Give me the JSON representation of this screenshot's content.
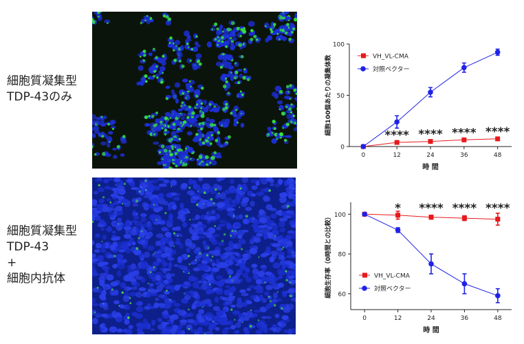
{
  "labels": {
    "top": [
      "細胞質凝集型",
      "TDP-43のみ"
    ],
    "bottom": [
      "細胞質凝集型",
      "TDP-43",
      "+",
      "細胞内抗体"
    ]
  },
  "micrographs": {
    "top": {
      "background": "#0b140a",
      "nuclei_color": "#1c2fd6",
      "aggregate_color": "#35e23a"
    },
    "bottom": {
      "background": "#050d30",
      "nuclei_color": "#1b2fd0",
      "aggregate_color": "#3fd84a"
    }
  },
  "colors": {
    "vh_vl_cma": "#e8191c",
    "control_vector": "#1f22e6"
  },
  "chart_data": [
    {
      "type": "line",
      "xlabel": "時 間",
      "ylabel": "細胞100個あたりの凝集体数",
      "x": [
        0,
        12,
        24,
        36,
        48
      ],
      "xlim": [
        -5,
        53
      ],
      "ylim": [
        0,
        100
      ],
      "yticks": [
        0,
        50,
        100
      ],
      "legend_position": "top-left",
      "series": [
        {
          "name": "VH_VL-CMA",
          "color": "#e8191c",
          "marker": "square",
          "values": [
            0,
            4,
            5,
            6.5,
            7.5
          ],
          "errors": [
            0,
            1.5,
            1,
            1,
            1.5
          ]
        },
        {
          "name": "対照ベクター",
          "color": "#1f22e6",
          "marker": "circle",
          "values": [
            0,
            24,
            53,
            77,
            92
          ],
          "errors": [
            0,
            6,
            4.5,
            4.5,
            3
          ]
        }
      ],
      "annotations": [
        {
          "x": 12,
          "y": 4,
          "text": "****"
        },
        {
          "x": 24,
          "y": 5,
          "text": "****"
        },
        {
          "x": 36,
          "y": 6.5,
          "text": "****"
        },
        {
          "x": 48,
          "y": 7.5,
          "text": "****"
        }
      ]
    },
    {
      "type": "line",
      "xlabel": "時 間",
      "ylabel": "細胞生存率（0時間との比較）",
      "x": [
        0,
        12,
        24,
        36,
        48
      ],
      "xlim": [
        -5,
        53
      ],
      "ylim": [
        52,
        106
      ],
      "yticks": [
        60,
        80,
        100
      ],
      "legend_position": "bottom-left",
      "series": [
        {
          "name": "VH_VL-CMA",
          "color": "#e8191c",
          "marker": "square",
          "values": [
            100,
            99.5,
            98.5,
            98,
            97.5
          ],
          "errors": [
            0,
            2,
            1,
            1.2,
            3
          ]
        },
        {
          "name": "対照ベクター",
          "color": "#1f22e6",
          "marker": "circle",
          "values": [
            100,
            92,
            75,
            65,
            59
          ],
          "errors": [
            0,
            1.2,
            5,
            5,
            3.5
          ]
        }
      ],
      "annotations": [
        {
          "x": 12,
          "y": 100,
          "text": "*"
        },
        {
          "x": 24,
          "y": 100,
          "text": "****"
        },
        {
          "x": 36,
          "y": 100,
          "text": "****"
        },
        {
          "x": 48,
          "y": 100,
          "text": "****"
        }
      ]
    }
  ]
}
